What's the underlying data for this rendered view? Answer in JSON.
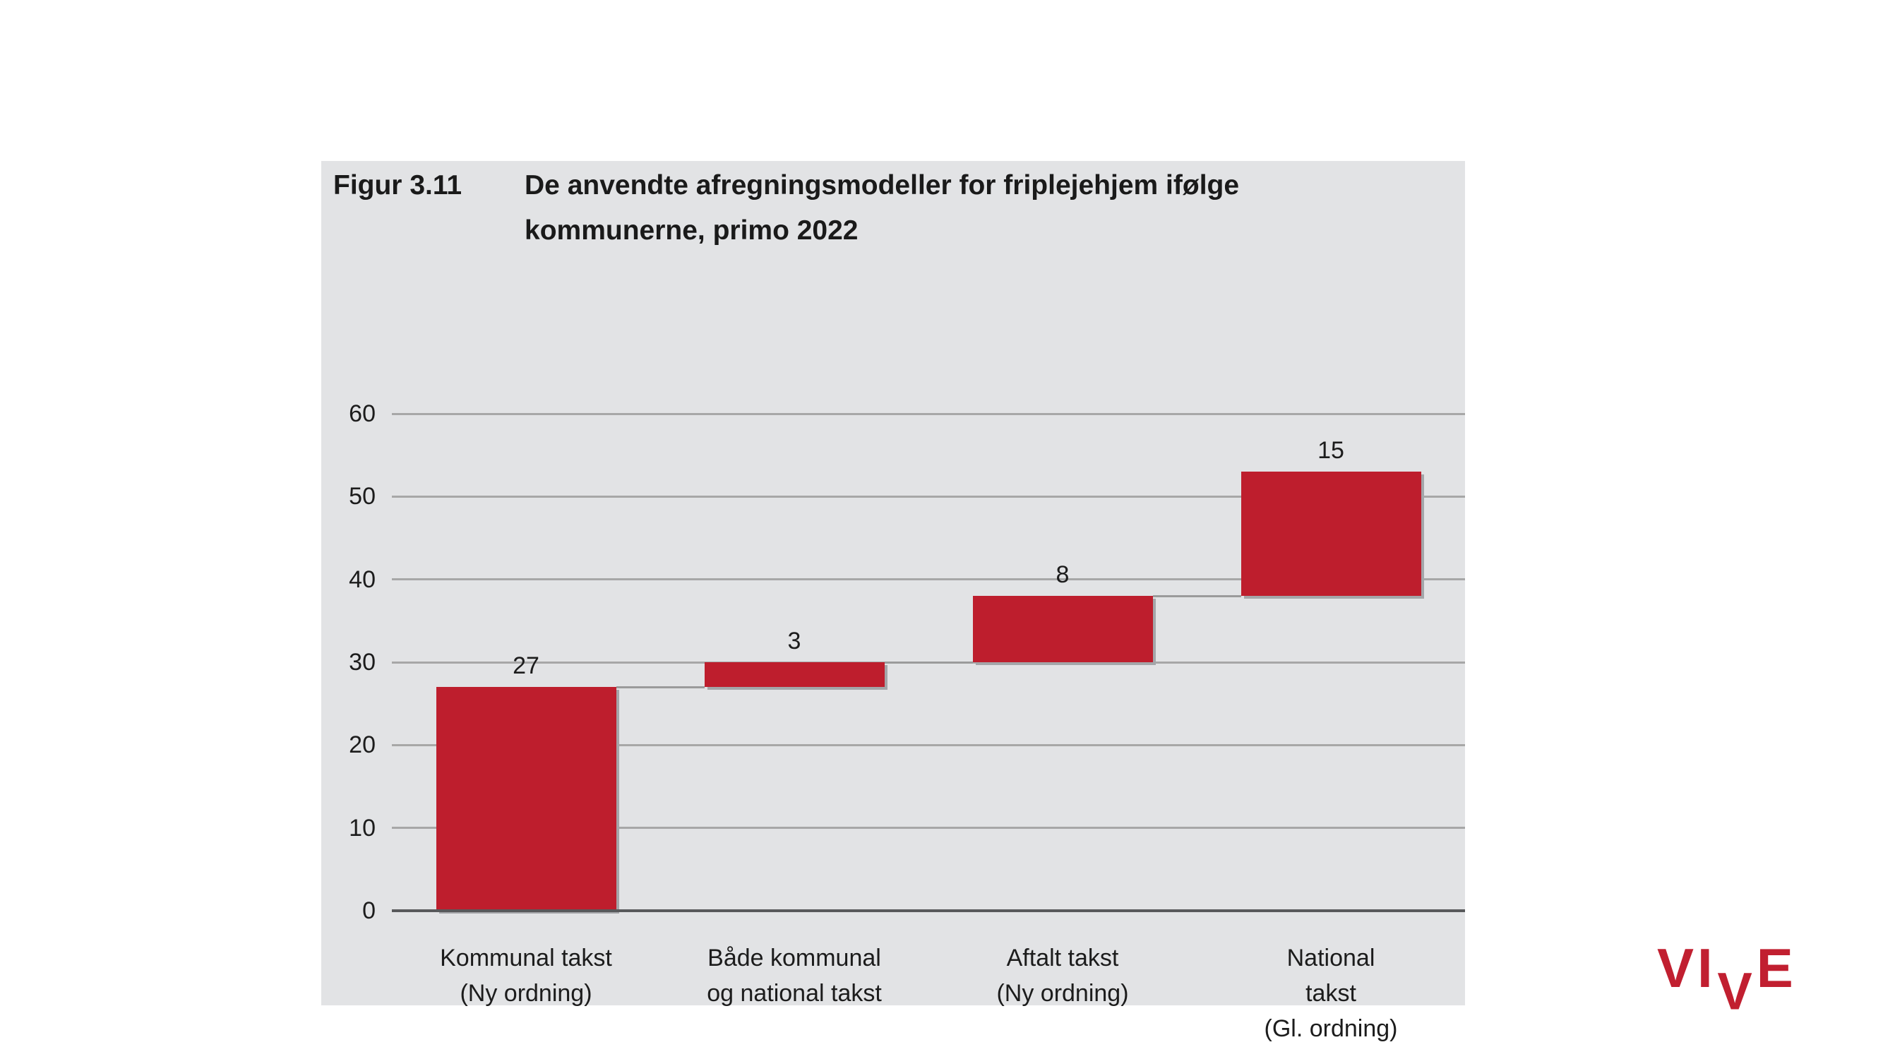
{
  "figure": {
    "label": "Figur 3.11",
    "title_line1": "De anvendte afregningsmodeller for friplejehjem ifølge",
    "title_line2": "kommunerne, primo 2022"
  },
  "logo": {
    "part1": "VI",
    "part2": "V",
    "part3": "E"
  },
  "colors": {
    "panel_bg": "#e2e3e5",
    "bar": "#be1e2d",
    "bar_shadow": "#a4a6a9",
    "gridline": "#a7a7a7",
    "axis_line": "#58595b",
    "connector": "#9b9b9b",
    "text": "#1c1c1c",
    "logo": "#c11f30"
  },
  "chart_data": {
    "type": "bar",
    "subtype": "waterfall",
    "title": "Figur 3.11 De anvendte afregningsmodeller for friplejehjem ifølge kommunerne, primo 2022",
    "categories": [
      [
        "Kommunal takst",
        "(Ny ordning)"
      ],
      [
        "Både kommunal",
        "og national takst"
      ],
      [
        "Aftalt takst",
        "(Ny ordning)"
      ],
      [
        "National takst",
        "(Gl. ordning)"
      ]
    ],
    "values": [
      27,
      3,
      8,
      15
    ],
    "starts": [
      0,
      27,
      30,
      38
    ],
    "ends": [
      27,
      30,
      38,
      53
    ],
    "labels": [
      "27",
      "3",
      "8",
      "15"
    ],
    "xlabel": "",
    "ylabel": "",
    "ylim": [
      0,
      60
    ],
    "yticks": [
      0,
      10,
      20,
      30,
      40,
      50,
      60
    ],
    "grid": true,
    "legend": "none",
    "cumulative_total": 53
  }
}
